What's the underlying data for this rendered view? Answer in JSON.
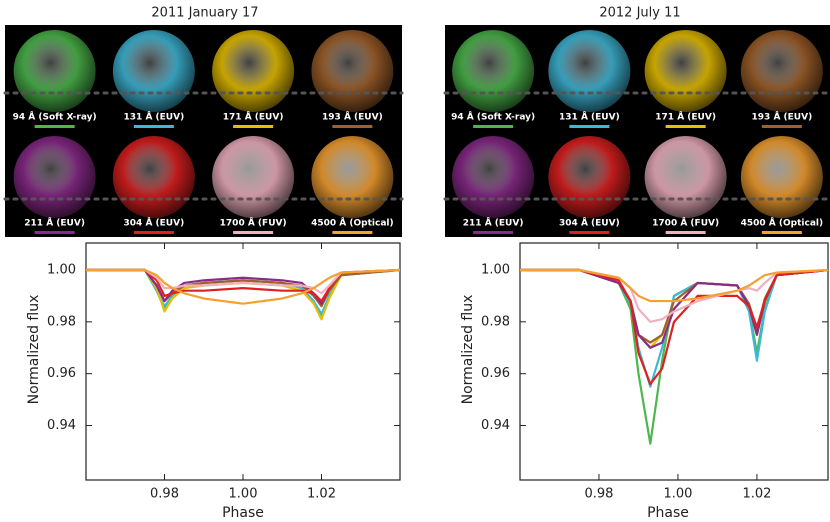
{
  "chart_data": [
    {
      "type": "line",
      "title": "2011 January 17",
      "xlabel": "Phase",
      "ylabel": "Normalized flux",
      "x": [
        0.96,
        0.975,
        0.978,
        0.98,
        0.982,
        0.985,
        0.99,
        1.0,
        1.01,
        1.015,
        1.018,
        1.02,
        1.022,
        1.025,
        1.04
      ],
      "series": [
        {
          "name": "94 Å (Soft X-ray)",
          "color": "#4cb84c",
          "values": [
            1,
            1,
            0.992,
            0.985,
            0.99,
            0.994,
            0.995,
            0.996,
            0.995,
            0.993,
            0.988,
            0.982,
            0.99,
            0.998,
            1
          ]
        },
        {
          "name": "131 Å (EUV)",
          "color": "#3fb8d8",
          "values": [
            1,
            1,
            0.992,
            0.986,
            0.99,
            0.994,
            0.995,
            0.996,
            0.995,
            0.993,
            0.988,
            0.983,
            0.99,
            0.998,
            1
          ]
        },
        {
          "name": "171 Å (EUV)",
          "color": "#e8c000",
          "values": [
            1,
            1,
            0.993,
            0.984,
            0.989,
            0.993,
            0.994,
            0.995,
            0.994,
            0.992,
            0.987,
            0.981,
            0.989,
            0.998,
            1
          ]
        },
        {
          "name": "193 Å (EUV)",
          "color": "#a0602a",
          "values": [
            1,
            1,
            0.994,
            0.988,
            0.991,
            0.994,
            0.995,
            0.996,
            0.995,
            0.994,
            0.99,
            0.986,
            0.992,
            0.998,
            1
          ]
        },
        {
          "name": "211 Å (EUV)",
          "color": "#8a2a8a",
          "values": [
            1,
            1,
            0.994,
            0.988,
            0.992,
            0.995,
            0.996,
            0.997,
            0.996,
            0.995,
            0.991,
            0.987,
            0.993,
            0.999,
            1
          ]
        },
        {
          "name": "304 Å (EUV)",
          "color": "#e02020",
          "values": [
            1,
            1,
            0.996,
            0.99,
            0.991,
            0.992,
            0.992,
            0.993,
            0.992,
            0.992,
            0.991,
            0.988,
            0.993,
            0.999,
            1
          ]
        },
        {
          "name": "1700 Å (FUV)",
          "color": "#f0b0c0",
          "values": [
            1,
            1,
            0.997,
            0.993,
            0.993,
            0.994,
            0.994,
            0.995,
            0.994,
            0.994,
            0.993,
            0.991,
            0.994,
            0.999,
            1
          ]
        },
        {
          "name": "4500 Å (Optical)",
          "color": "#f5a030",
          "values": [
            1,
            1,
            0.998,
            0.995,
            0.993,
            0.991,
            0.989,
            0.987,
            0.989,
            0.991,
            0.993,
            0.995,
            0.997,
            0.999,
            1
          ]
        }
      ],
      "xlim": [
        0.96,
        1.04
      ],
      "ylim": [
        0.919,
        1.0104
      ],
      "xticks": [
        0.98,
        {
          "value": 1.0,
          "label": "1.00"
        },
        1.02
      ],
      "yticks": [
        {
          "value": 1.0,
          "label": "1.00"
        },
        0.98,
        0.96,
        0.94
      ]
    },
    {
      "type": "line",
      "title": "2012 July 11",
      "xlabel": "Phase",
      "ylabel": "Normalized flux",
      "x": [
        0.96,
        0.975,
        0.985,
        0.988,
        0.99,
        0.993,
        0.996,
        0.999,
        1.005,
        1.015,
        1.018,
        1.02,
        1.022,
        1.025,
        1.038
      ],
      "series": [
        {
          "name": "94 Å (Soft X-ray)",
          "color": "#4cb84c",
          "values": [
            1,
            1,
            0.995,
            0.985,
            0.96,
            0.933,
            0.965,
            0.99,
            0.995,
            0.994,
            0.985,
            0.968,
            0.985,
            0.998,
            1
          ]
        },
        {
          "name": "131 Å (EUV)",
          "color": "#3fb8d8",
          "values": [
            1,
            1,
            0.995,
            0.987,
            0.97,
            0.955,
            0.97,
            0.99,
            0.995,
            0.994,
            0.984,
            0.965,
            0.984,
            0.998,
            1
          ]
        },
        {
          "name": "171 Å (EUV)",
          "color": "#e8c000",
          "values": [
            1,
            1,
            0.995,
            0.988,
            0.975,
            0.97,
            0.975,
            0.985,
            0.995,
            0.994,
            0.986,
            0.975,
            0.988,
            0.998,
            1
          ]
        },
        {
          "name": "193 Å (EUV)",
          "color": "#a0602a",
          "values": [
            1,
            1,
            0.995,
            0.988,
            0.975,
            0.972,
            0.975,
            0.988,
            0.995,
            0.994,
            0.987,
            0.977,
            0.989,
            0.998,
            1
          ]
        },
        {
          "name": "211 Å (EUV)",
          "color": "#8a2a8a",
          "values": [
            1,
            1,
            0.995,
            0.988,
            0.975,
            0.97,
            0.972,
            0.985,
            0.995,
            0.994,
            0.986,
            0.975,
            0.988,
            0.998,
            1
          ]
        },
        {
          "name": "304 Å (EUV)",
          "color": "#e02020",
          "values": [
            1,
            1,
            0.996,
            0.988,
            0.968,
            0.956,
            0.962,
            0.98,
            0.99,
            0.99,
            0.986,
            0.978,
            0.988,
            0.998,
            1
          ]
        },
        {
          "name": "1700 Å (FUV)",
          "color": "#f0b0c0",
          "values": [
            1,
            1,
            0.997,
            0.993,
            0.985,
            0.98,
            0.981,
            0.984,
            0.988,
            0.992,
            0.993,
            0.992,
            0.995,
            0.999,
            1
          ]
        },
        {
          "name": "4500 Å (Optical)",
          "color": "#f5a030",
          "values": [
            1,
            1,
            0.997,
            0.993,
            0.99,
            0.988,
            0.988,
            0.988,
            0.989,
            0.992,
            0.994,
            0.996,
            0.998,
            0.999,
            1
          ]
        }
      ],
      "xlim": [
        0.96,
        1.038
      ],
      "ylim": [
        0.919,
        1.0104
      ],
      "xticks": [
        0.98,
        {
          "value": 1.0,
          "label": "1.00"
        },
        1.02
      ],
      "yticks": [
        {
          "value": 1.0,
          "label": "1.00"
        },
        0.98,
        0.96,
        0.94
      ]
    }
  ]
}
